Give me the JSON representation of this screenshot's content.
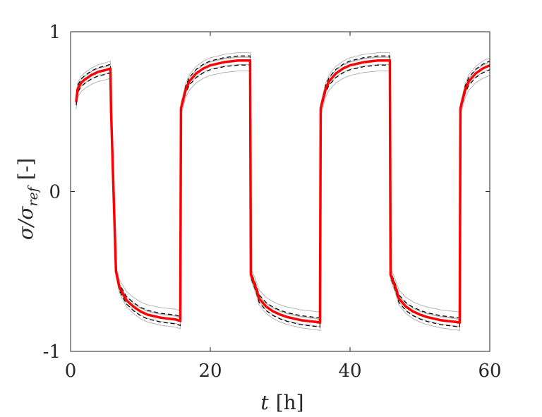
{
  "chart_data": {
    "type": "line",
    "title": "",
    "xlabel_var": "t",
    "xlabel_unit": "[h]",
    "ylabel_var": "σ/σ",
    "ylabel_sub": "ref",
    "ylabel_unit": "[-]",
    "xlim": [
      0,
      60
    ],
    "ylim": [
      -1,
      1
    ],
    "xticks": [
      0,
      20,
      40,
      60
    ],
    "xtick_labels": [
      "0",
      "20",
      "40",
      "60"
    ],
    "yticks": [
      -1,
      0,
      1
    ],
    "ytick_labels": [
      "-1",
      "0",
      "1"
    ],
    "grid": false,
    "legend": "none",
    "colors": {
      "mean": "#ff0000",
      "bounds": "#000000",
      "samples": "#b4b4b4"
    },
    "series": [
      {
        "role": "mean",
        "x": [
          0.8,
          1,
          1.5,
          2,
          3,
          4,
          5,
          5.7,
          5.8,
          6.5,
          7,
          8,
          9,
          10,
          11,
          12,
          13,
          14,
          15,
          15.7,
          15.8,
          16.5,
          17,
          18,
          19,
          20,
          21,
          22,
          23,
          24,
          25,
          25.7,
          25.8,
          26.5,
          27,
          28,
          29,
          30,
          31,
          32,
          33,
          34,
          35,
          35.7,
          35.8,
          36.5,
          37,
          38,
          39,
          40,
          41,
          42,
          43,
          44,
          45,
          45.7,
          45.8,
          46.5,
          47,
          48,
          49,
          50,
          51,
          52,
          53,
          54,
          55,
          55.7,
          55.8,
          56.5,
          57,
          58,
          59,
          60
        ],
        "y": [
          0.56,
          0.64,
          0.68,
          0.7,
          0.73,
          0.75,
          0.76,
          0.77,
          0.5,
          -0.5,
          -0.6,
          -0.68,
          -0.72,
          -0.75,
          -0.77,
          -0.78,
          -0.79,
          -0.795,
          -0.8,
          -0.81,
          0.52,
          0.64,
          0.69,
          0.74,
          0.77,
          0.79,
          0.8,
          0.81,
          0.815,
          0.82,
          0.82,
          0.82,
          -0.52,
          -0.6,
          -0.67,
          -0.72,
          -0.75,
          -0.77,
          -0.785,
          -0.795,
          -0.805,
          -0.81,
          -0.815,
          -0.82,
          0.52,
          0.64,
          0.69,
          0.74,
          0.77,
          0.79,
          0.8,
          0.81,
          0.815,
          0.82,
          0.82,
          0.82,
          -0.52,
          -0.6,
          -0.67,
          -0.72,
          -0.75,
          -0.77,
          -0.785,
          -0.795,
          -0.805,
          -0.81,
          -0.815,
          -0.82,
          0.52,
          0.64,
          0.69,
          0.74,
          0.77,
          0.79
        ]
      },
      {
        "role": "sample",
        "scale": 1.06,
        "shift": 0.0
      },
      {
        "role": "sample",
        "scale": 1.03,
        "shift": 0.0
      },
      {
        "role": "sample",
        "scale": 0.97,
        "shift": 0.0
      },
      {
        "role": "sample",
        "scale": 0.92,
        "shift": 0.0
      },
      {
        "role": "sample",
        "scale": 1.0,
        "shift": 0.02
      },
      {
        "role": "bound",
        "scale": 1.035,
        "shift": 0.0
      },
      {
        "role": "bound",
        "scale": 0.965,
        "shift": 0.0
      }
    ]
  }
}
